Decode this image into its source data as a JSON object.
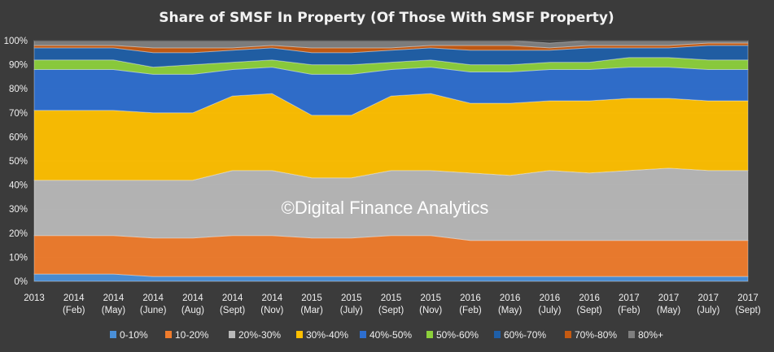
{
  "chart_data": {
    "type": "area",
    "stacked": true,
    "title": "Share of SMSF In Property (Of Those With SMSF Property)",
    "watermark": "©Digital Finance Analytics",
    "xlabel": "",
    "ylabel": "",
    "ylim": [
      0,
      100
    ],
    "y_ticks": [
      "0%",
      "10%",
      "20%",
      "30%",
      "40%",
      "50%",
      "60%",
      "70%",
      "80%",
      "90%",
      "100%"
    ],
    "categories": [
      [
        "2013"
      ],
      [
        "2014",
        "(Feb)"
      ],
      [
        "2014",
        "(May)"
      ],
      [
        "2014",
        "(June)"
      ],
      [
        "2014",
        "(Aug)"
      ],
      [
        "2014",
        "(Sept)"
      ],
      [
        "2014",
        "(Nov)"
      ],
      [
        "2015",
        "(Mar)"
      ],
      [
        "2015",
        "(July)"
      ],
      [
        "2015",
        "(Sept)"
      ],
      [
        "2015",
        "(Nov)"
      ],
      [
        "2016",
        "(Feb)"
      ],
      [
        "2016",
        "(May)"
      ],
      [
        "2016",
        "(July)"
      ],
      [
        "2016",
        "(Sept)"
      ],
      [
        "2017",
        "(Feb)"
      ],
      [
        "2017",
        "(May)"
      ],
      [
        "2017",
        "(July)"
      ],
      [
        "2017",
        "(Sept)"
      ]
    ],
    "legend_position": "bottom",
    "series": [
      {
        "name": "0-10%",
        "color": "#4a8fd8",
        "values": [
          3,
          3,
          3,
          2,
          2,
          2,
          2,
          2,
          2,
          2,
          2,
          2,
          2,
          2,
          2,
          2,
          2,
          2,
          2
        ]
      },
      {
        "name": "10-20%",
        "color": "#f07c2c",
        "values": [
          16,
          16,
          16,
          16,
          16,
          17,
          17,
          16,
          16,
          17,
          17,
          15,
          15,
          15,
          15,
          15,
          15,
          15,
          15
        ]
      },
      {
        "name": "20%-30%",
        "color": "#b8b8b8",
        "values": [
          23,
          23,
          23,
          24,
          24,
          27,
          27,
          25,
          25,
          27,
          27,
          28,
          27,
          29,
          28,
          29,
          30,
          29,
          29
        ]
      },
      {
        "name": "30%-40%",
        "color": "#ffc000",
        "values": [
          29,
          29,
          29,
          28,
          28,
          31,
          32,
          26,
          26,
          31,
          32,
          29,
          30,
          29,
          30,
          30,
          29,
          29,
          29
        ]
      },
      {
        "name": "40%-50%",
        "color": "#2e6fd0",
        "values": [
          17,
          17,
          17,
          16,
          16,
          11,
          11,
          17,
          17,
          11,
          11,
          13,
          13,
          13,
          13,
          13,
          13,
          13,
          13
        ]
      },
      {
        "name": "50%-60%",
        "color": "#8cd03b",
        "values": [
          4,
          4,
          4,
          3,
          4,
          3,
          3,
          4,
          4,
          3,
          3,
          3,
          3,
          3,
          3,
          4,
          4,
          4,
          4
        ]
      },
      {
        "name": "60%-70%",
        "color": "#1f5fa8",
        "values": [
          5,
          5,
          5,
          6,
          5,
          5,
          5,
          5,
          5,
          5,
          5,
          6,
          6,
          5,
          6,
          4,
          4,
          6,
          6
        ]
      },
      {
        "name": "70%-80%",
        "color": "#c55a11",
        "values": [
          1,
          1,
          1,
          2,
          2,
          1,
          1,
          2,
          2,
          1,
          1,
          2,
          2,
          1,
          1,
          1,
          1,
          1,
          1
        ]
      },
      {
        "name": "80%+",
        "color": "#7f7f7f",
        "values": [
          2,
          2,
          2,
          3,
          3,
          3,
          2,
          3,
          3,
          3,
          2,
          2,
          2,
          2,
          2,
          2,
          2,
          1,
          1
        ]
      }
    ]
  }
}
